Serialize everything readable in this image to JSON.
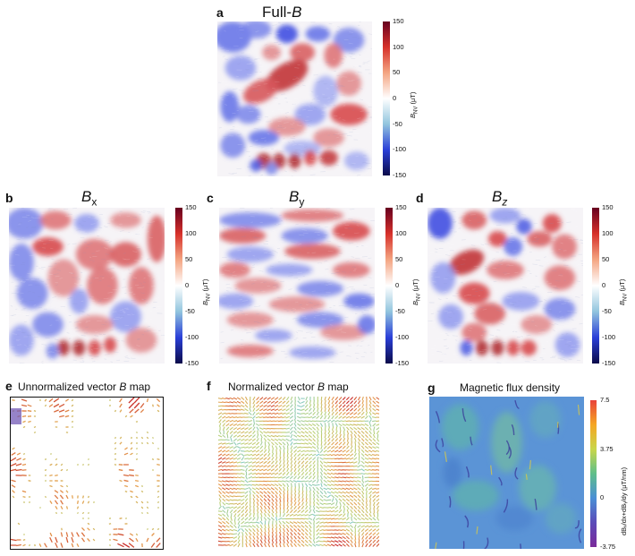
{
  "panels": {
    "a": {
      "letter": "a",
      "title_pre": "Full-",
      "title_var": "B"
    },
    "b": {
      "letter": "b",
      "title_var": "B",
      "title_sub": "x"
    },
    "c": {
      "letter": "c",
      "title_var": "B",
      "title_sub": "y"
    },
    "d": {
      "letter": "d",
      "title_var": "B",
      "title_sub": "z"
    },
    "e": {
      "letter": "e",
      "title_pre": "Unnormalized vector ",
      "title_var": "B",
      "title_post": " map"
    },
    "f": {
      "letter": "f",
      "title_pre": "Normalized vector ",
      "title_var": "B",
      "title_post": " map"
    },
    "g": {
      "letter": "g",
      "title": "Magnetic flux density"
    }
  },
  "colorbar_field": {
    "label_main": "B",
    "label_sub": "NV",
    "label_unit": " (μT)",
    "ticks": [
      "150",
      "100",
      "50",
      "0",
      "-50",
      "-100",
      "-150"
    ],
    "colors": [
      "#67001f",
      "#d6302a",
      "#f4a582",
      "#ffffff",
      "#92c5de",
      "#2a3fd8",
      "#0b0b4a"
    ]
  },
  "colorbar_flux": {
    "label": "dBₓ/dx+dBᵧ/dy (μT/nm)",
    "ticks": [
      "7.5",
      "3.75",
      "0",
      "-3.75"
    ],
    "colors": [
      "#e8423a",
      "#f5a623",
      "#c9d64a",
      "#5fbf8a",
      "#4a8fd6",
      "#5b4bb8",
      "#7a2a9a"
    ]
  },
  "chart_data": [
    {
      "type": "heatmap",
      "panel": "a",
      "title": "Full-B",
      "colorbar_label": "B_NV (μT)",
      "vmin": -150,
      "vmax": 150
    },
    {
      "type": "heatmap",
      "panel": "b",
      "title": "Bx",
      "colorbar_label": "B_NV (μT)",
      "vmin": -150,
      "vmax": 150
    },
    {
      "type": "heatmap",
      "panel": "c",
      "title": "By",
      "colorbar_label": "B_NV (μT)",
      "vmin": -150,
      "vmax": 150
    },
    {
      "type": "heatmap",
      "panel": "d",
      "title": "Bz",
      "colorbar_label": "B_NV (μT)",
      "vmin": -150,
      "vmax": 150
    },
    {
      "type": "heatmap",
      "panel": "e",
      "title": "Unnormalized vector B map"
    },
    {
      "type": "heatmap",
      "panel": "f",
      "title": "Normalized vector B map"
    },
    {
      "type": "heatmap",
      "panel": "g",
      "title": "Magnetic flux density",
      "colorbar_label": "dBx/dx+dBy/dy (μT/nm)",
      "vmin": -3.75,
      "vmax": 7.5
    }
  ]
}
